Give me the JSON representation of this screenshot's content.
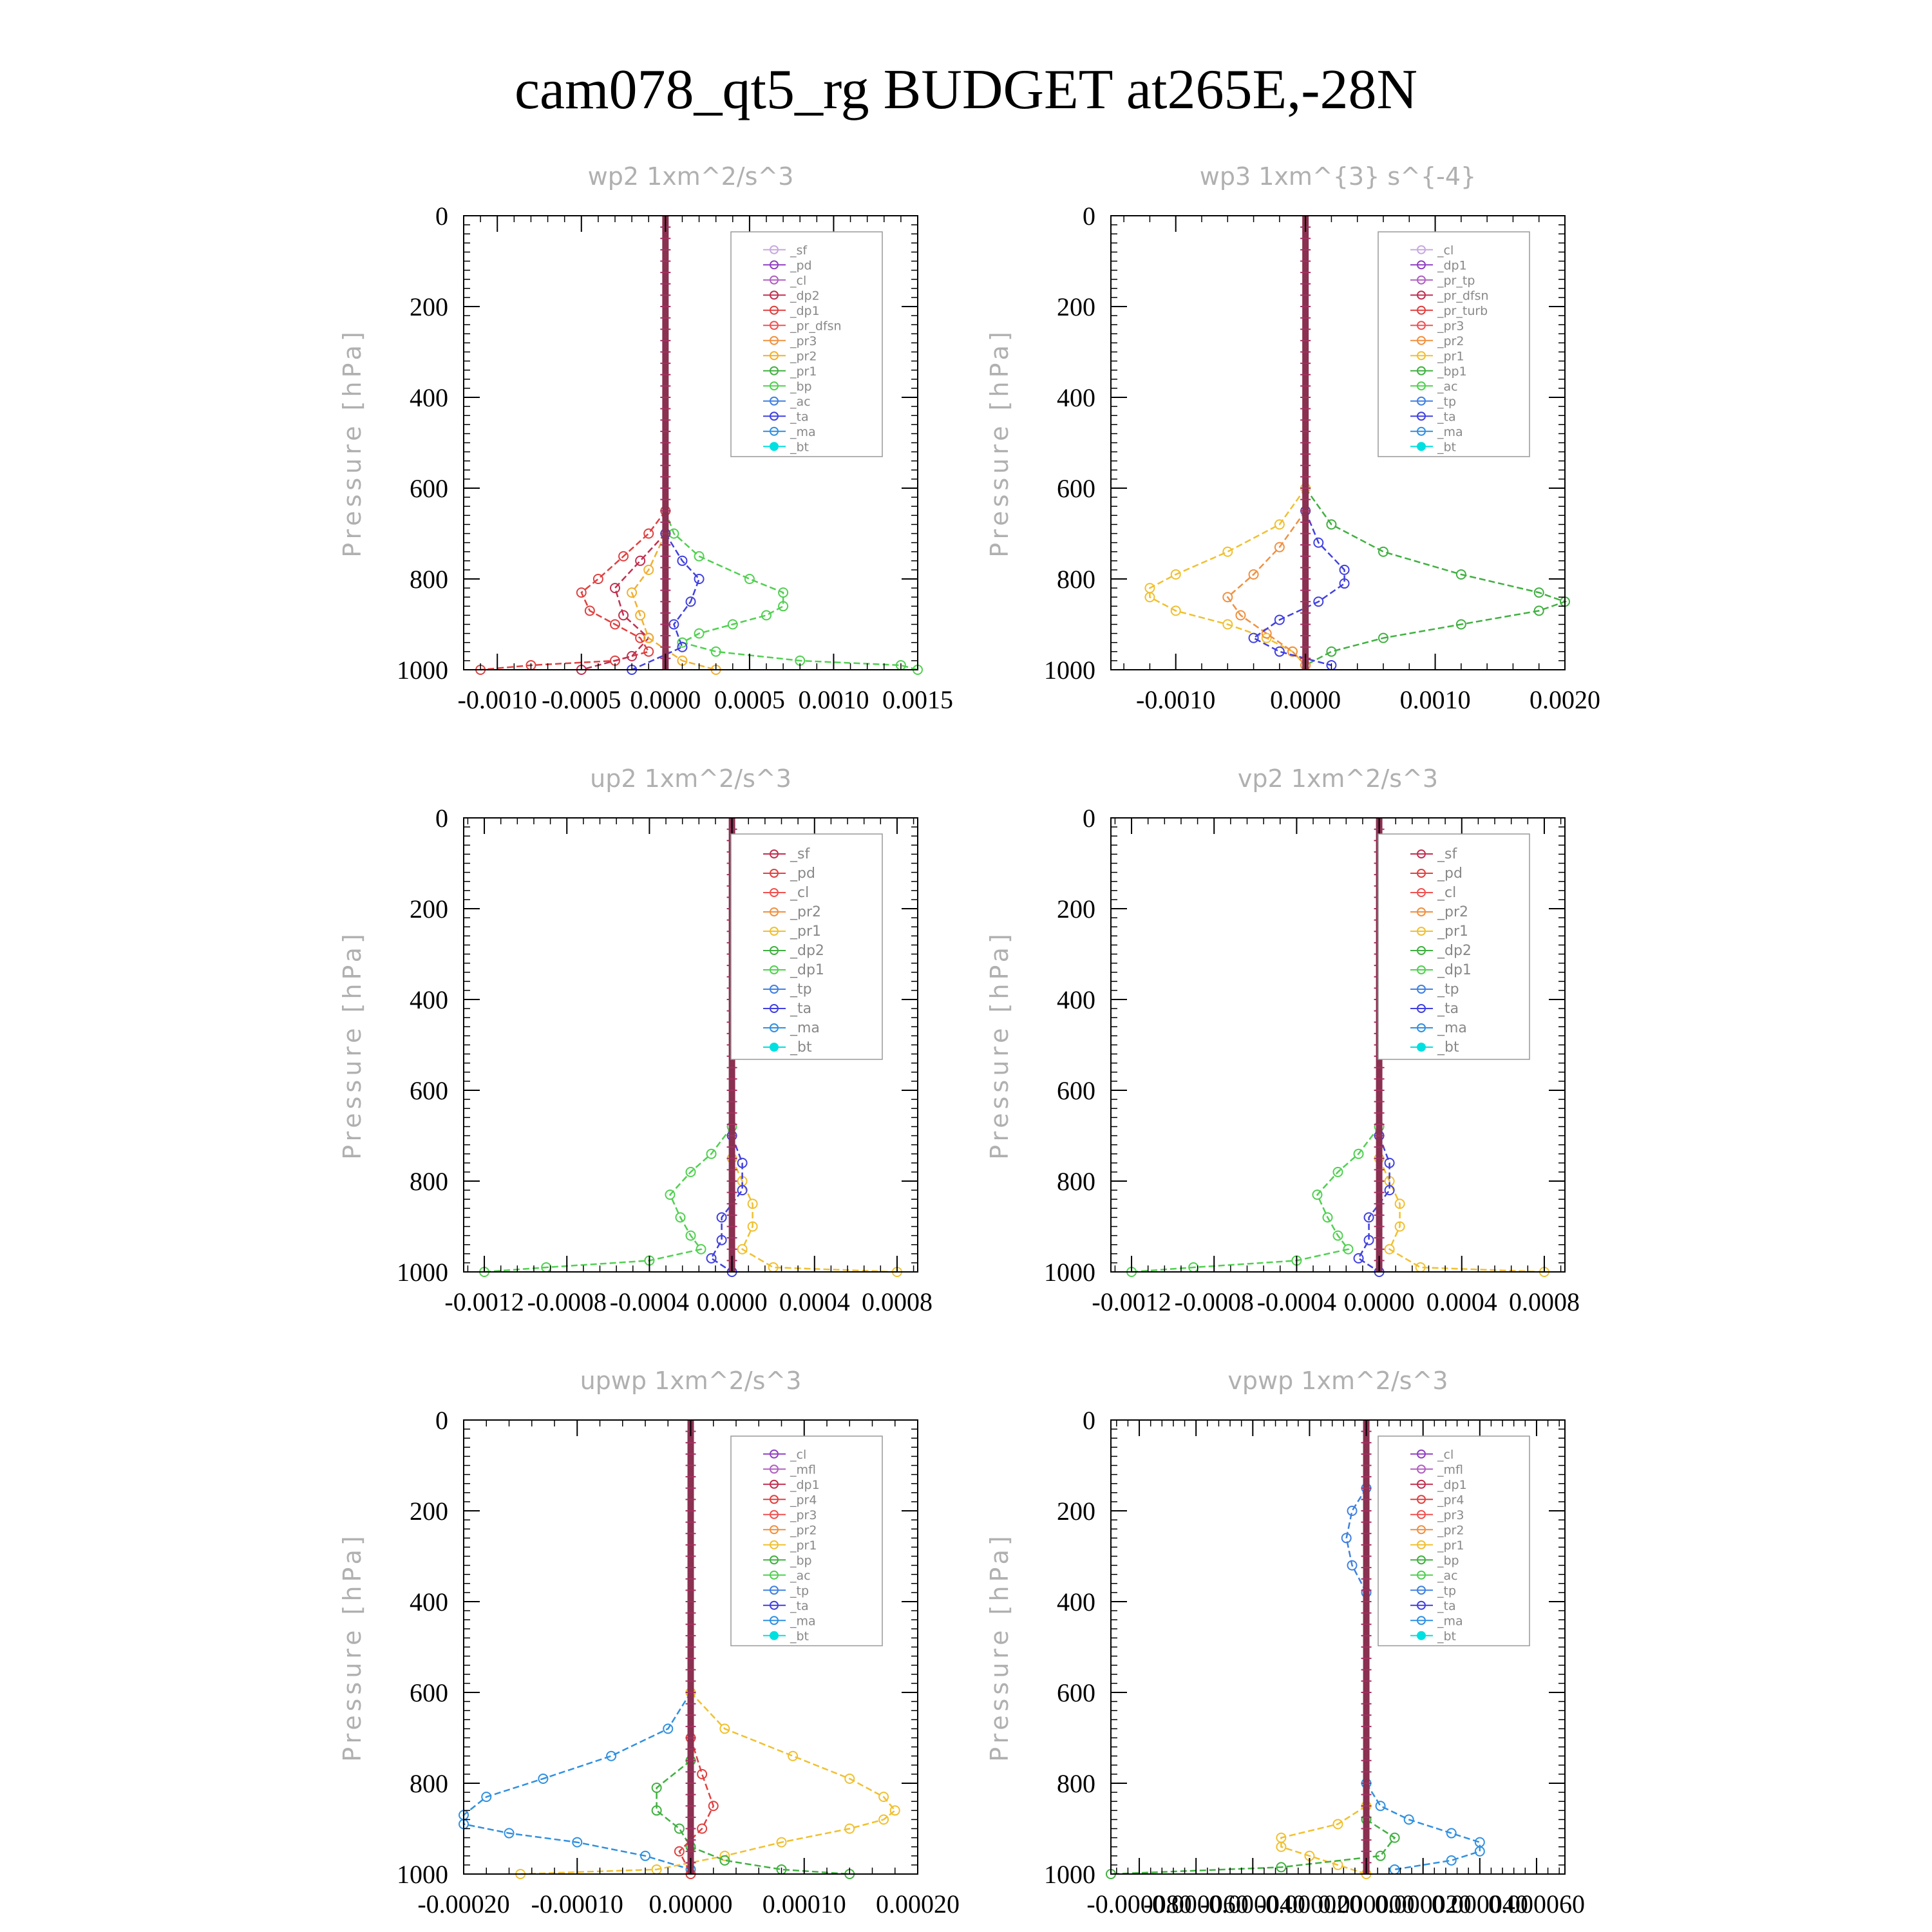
{
  "title": "cam078_qt5_rg  BUDGET at265E,-28N",
  "charts": [
    {
      "id": "wp2",
      "title": "wp2   1xm^2/s^3",
      "ylabel": "Pressure [hPa]",
      "xlim": [
        -0.0012,
        0.0015
      ],
      "ylim": [
        0,
        1000
      ],
      "xticks": [
        "-0.0010",
        "-0.0005",
        "0.0000",
        "0.0005",
        "0.0010",
        "0.0015"
      ],
      "xtick_values": [
        -0.001,
        -0.0005,
        0.0,
        0.0005,
        0.001,
        0.0015
      ],
      "yticks": [
        "0",
        "200",
        "400",
        "600",
        "800",
        "1000"
      ],
      "legend": [
        {
          "name": "_sf",
          "color": "#c8a8e0"
        },
        {
          "name": "_pd",
          "color": "#9040c0"
        },
        {
          "name": "_cl",
          "color": "#b060c0"
        },
        {
          "name": "_dp2",
          "color": "#c03050"
        },
        {
          "name": "_dp1",
          "color": "#e04040"
        },
        {
          "name": "_pr_dfsn",
          "color": "#f05050"
        },
        {
          "name": "_pr3",
          "color": "#f09040"
        },
        {
          "name": "_pr2",
          "color": "#f0b030"
        },
        {
          "name": "_pr1",
          "color": "#40b040"
        },
        {
          "name": "_bp",
          "color": "#50d050"
        },
        {
          "name": "_ac",
          "color": "#4080e0"
        },
        {
          "name": "_ta",
          "color": "#4040e0"
        },
        {
          "name": "_ma",
          "color": "#3090e0"
        },
        {
          "name": "_bt",
          "color": "#00e0e0"
        }
      ],
      "series": [
        {
          "color": "#50d050",
          "p": [
            650,
            700,
            750,
            800,
            830,
            860,
            880,
            900,
            920,
            940,
            960,
            980,
            990,
            1000
          ],
          "v": [
            0,
            5e-05,
            0.0002,
            0.0005,
            0.0007,
            0.0007,
            0.0006,
            0.0004,
            0.0002,
            0.0001,
            0.0003,
            0.0008,
            0.0014,
            0.0015
          ]
        },
        {
          "color": "#e04040",
          "p": [
            650,
            700,
            750,
            800,
            830,
            870,
            900,
            930,
            960,
            980,
            990,
            1000
          ],
          "v": [
            0,
            -0.0001,
            -0.00025,
            -0.0004,
            -0.0005,
            -0.00045,
            -0.0003,
            -0.00015,
            -0.0001,
            -0.0003,
            -0.0008,
            -0.0011
          ]
        },
        {
          "color": "#c03050",
          "p": [
            700,
            760,
            820,
            880,
            930,
            970,
            1000
          ],
          "v": [
            0,
            -0.00015,
            -0.0003,
            -0.00025,
            -0.0001,
            -0.0002,
            -0.0005
          ]
        },
        {
          "color": "#f0b030",
          "p": [
            700,
            780,
            830,
            880,
            930,
            980,
            1000
          ],
          "v": [
            0,
            -0.0001,
            -0.0002,
            -0.00015,
            -0.0001,
            0.0001,
            0.0003
          ]
        },
        {
          "color": "#4040e0",
          "p": [
            700,
            760,
            800,
            850,
            900,
            950,
            1000
          ],
          "v": [
            0,
            0.0001,
            0.0002,
            0.00015,
            5e-05,
            0.0001,
            -0.0002
          ]
        }
      ]
    },
    {
      "id": "wp3",
      "title": "wp3   1xm^{3} s^{-4}",
      "ylabel": "Pressure [hPa]",
      "xlim": [
        -0.0015,
        0.002
      ],
      "ylim": [
        0,
        1000
      ],
      "xticks": [
        "-0.0010",
        "0.0000",
        "0.0010",
        "0.0020"
      ],
      "xtick_values": [
        -0.001,
        0.0,
        0.001,
        0.002
      ],
      "yticks": [
        "0",
        "200",
        "400",
        "600",
        "800",
        "1000"
      ],
      "legend": [
        {
          "name": "_cl",
          "color": "#c8a8e0"
        },
        {
          "name": "_dp1",
          "color": "#9040c0"
        },
        {
          "name": "_pr_tp",
          "color": "#b060c0"
        },
        {
          "name": "_pr_dfsn",
          "color": "#c03050"
        },
        {
          "name": "_pr_turb",
          "color": "#e04040"
        },
        {
          "name": "_pr3",
          "color": "#f05050"
        },
        {
          "name": "_pr2",
          "color": "#f09040"
        },
        {
          "name": "_pr1",
          "color": "#f0c030"
        },
        {
          "name": "_bp1",
          "color": "#40b040"
        },
        {
          "name": "_ac",
          "color": "#50d050"
        },
        {
          "name": "_tp",
          "color": "#4080e0"
        },
        {
          "name": "_ta",
          "color": "#4040e0"
        },
        {
          "name": "_ma",
          "color": "#3090e0"
        },
        {
          "name": "_bt",
          "color": "#00e0e0"
        }
      ],
      "series": [
        {
          "color": "#40b040",
          "p": [
            600,
            680,
            740,
            790,
            830,
            850,
            870,
            900,
            930,
            960,
            990
          ],
          "v": [
            0,
            0.0002,
            0.0006,
            0.0012,
            0.0018,
            0.002,
            0.0018,
            0.0012,
            0.0006,
            0.0002,
            0
          ]
        },
        {
          "color": "#f0c030",
          "p": [
            600,
            680,
            740,
            790,
            820,
            840,
            870,
            900,
            930,
            960,
            990
          ],
          "v": [
            0,
            -0.0002,
            -0.0006,
            -0.001,
            -0.0012,
            -0.0012,
            -0.001,
            -0.0006,
            -0.0003,
            -0.0001,
            0
          ]
        },
        {
          "color": "#f09040",
          "p": [
            650,
            730,
            790,
            840,
            880,
            920,
            960,
            990
          ],
          "v": [
            0,
            -0.0002,
            -0.0004,
            -0.0006,
            -0.0005,
            -0.0003,
            -0.0001,
            0
          ]
        },
        {
          "color": "#4040e0",
          "p": [
            650,
            720,
            780,
            810,
            850,
            890,
            930,
            960,
            990
          ],
          "v": [
            0,
            0.0001,
            0.0003,
            0.0003,
            0.0001,
            -0.0002,
            -0.0004,
            -0.0002,
            0.0002
          ]
        }
      ]
    },
    {
      "id": "up2",
      "title": "up2   1xm^2/s^3",
      "ylabel": "Pressure [hPa]",
      "xlim": [
        -0.0013,
        0.0009
      ],
      "ylim": [
        0,
        1000
      ],
      "xticks": [
        "-0.0012",
        "-0.0008",
        "-0.0004",
        "0.0000",
        "0.0004",
        "0.0008"
      ],
      "xtick_values": [
        -0.0012,
        -0.0008,
        -0.0004,
        0.0,
        0.0004,
        0.0008
      ],
      "yticks": [
        "0",
        "200",
        "400",
        "600",
        "800",
        "1000"
      ],
      "legend": [
        {
          "name": "_sf",
          "color": "#c03050"
        },
        {
          "name": "_pd",
          "color": "#e04040"
        },
        {
          "name": "_cl",
          "color": "#f05050"
        },
        {
          "name": "_pr2",
          "color": "#f09040"
        },
        {
          "name": "_pr1",
          "color": "#f0c030"
        },
        {
          "name": "_dp2",
          "color": "#40b040"
        },
        {
          "name": "_dp1",
          "color": "#50d050"
        },
        {
          "name": "_tp",
          "color": "#4080e0"
        },
        {
          "name": "_ta",
          "color": "#4040e0"
        },
        {
          "name": "_ma",
          "color": "#3090e0"
        },
        {
          "name": "_bt",
          "color": "#00e0e0"
        }
      ],
      "series": [
        {
          "color": "#50d050",
          "p": [
            680,
            740,
            780,
            830,
            880,
            920,
            950,
            975,
            990,
            1000
          ],
          "v": [
            0,
            -0.0001,
            -0.0002,
            -0.0003,
            -0.00025,
            -0.0002,
            -0.00015,
            -0.0004,
            -0.0009,
            -0.0012
          ]
        },
        {
          "color": "#f0c030",
          "p": [
            750,
            800,
            850,
            900,
            950,
            990,
            1000
          ],
          "v": [
            0,
            5e-05,
            0.0001,
            0.0001,
            5e-05,
            0.0002,
            0.0008
          ]
        },
        {
          "color": "#4040e0",
          "p": [
            700,
            760,
            820,
            880,
            930,
            970,
            1000
          ],
          "v": [
            0,
            5e-05,
            5e-05,
            -5e-05,
            -5e-05,
            -0.0001,
            0
          ]
        }
      ]
    },
    {
      "id": "vp2",
      "title": "vp2   1xm^2/s^3",
      "ylabel": "Pressure [hPa]",
      "xlim": [
        -0.0013,
        0.0009
      ],
      "ylim": [
        0,
        1000
      ],
      "xticks": [
        "-0.0012",
        "-0.0008",
        "-0.0004",
        "0.0000",
        "0.0004",
        "0.0008"
      ],
      "xtick_values": [
        -0.0012,
        -0.0008,
        -0.0004,
        0.0,
        0.0004,
        0.0008
      ],
      "yticks": [
        "0",
        "200",
        "400",
        "600",
        "800",
        "1000"
      ],
      "legend": [
        {
          "name": "_sf",
          "color": "#c03050"
        },
        {
          "name": "_pd",
          "color": "#e04040"
        },
        {
          "name": "_cl",
          "color": "#f05050"
        },
        {
          "name": "_pr2",
          "color": "#f09040"
        },
        {
          "name": "_pr1",
          "color": "#f0c030"
        },
        {
          "name": "_dp2",
          "color": "#40b040"
        },
        {
          "name": "_dp1",
          "color": "#50d050"
        },
        {
          "name": "_tp",
          "color": "#4080e0"
        },
        {
          "name": "_ta",
          "color": "#4040e0"
        },
        {
          "name": "_ma",
          "color": "#3090e0"
        },
        {
          "name": "_bt",
          "color": "#00e0e0"
        }
      ],
      "series": [
        {
          "color": "#50d050",
          "p": [
            680,
            740,
            780,
            830,
            880,
            920,
            950,
            975,
            990,
            1000
          ],
          "v": [
            0,
            -0.0001,
            -0.0002,
            -0.0003,
            -0.00025,
            -0.0002,
            -0.00015,
            -0.0004,
            -0.0009,
            -0.0012
          ]
        },
        {
          "color": "#f0c030",
          "p": [
            750,
            800,
            850,
            900,
            950,
            990,
            1000
          ],
          "v": [
            0,
            5e-05,
            0.0001,
            0.0001,
            5e-05,
            0.0002,
            0.0008
          ]
        },
        {
          "color": "#4040e0",
          "p": [
            700,
            760,
            820,
            880,
            930,
            970,
            1000
          ],
          "v": [
            0,
            5e-05,
            5e-05,
            -5e-05,
            -5e-05,
            -0.0001,
            0
          ]
        }
      ]
    },
    {
      "id": "upwp",
      "title": "upwp   1xm^2/s^3",
      "ylabel": "Pressure [hPa]",
      "xlim": [
        -0.0002,
        0.0002
      ],
      "ylim": [
        0,
        1000
      ],
      "xticks": [
        "-0.00020",
        "-0.00010",
        "0.00000",
        "0.00010",
        "0.00020"
      ],
      "xtick_values": [
        -0.0002,
        -0.0001,
        0.0,
        0.0001,
        0.0002
      ],
      "yticks": [
        "0",
        "200",
        "400",
        "600",
        "800",
        "1000"
      ],
      "legend": [
        {
          "name": "_cl",
          "color": "#9040c0"
        },
        {
          "name": "_mfl",
          "color": "#b060c0"
        },
        {
          "name": "_dp1",
          "color": "#c03050"
        },
        {
          "name": "_pr4",
          "color": "#e04040"
        },
        {
          "name": "_pr3",
          "color": "#f05050"
        },
        {
          "name": "_pr2",
          "color": "#f09040"
        },
        {
          "name": "_pr1",
          "color": "#f0c030"
        },
        {
          "name": "_bp",
          "color": "#40b040"
        },
        {
          "name": "_ac",
          "color": "#50d050"
        },
        {
          "name": "_tp",
          "color": "#4080e0"
        },
        {
          "name": "_ta",
          "color": "#4040e0"
        },
        {
          "name": "_ma",
          "color": "#3090e0"
        },
        {
          "name": "_bt",
          "color": "#00e0e0"
        }
      ],
      "series": [
        {
          "color": "#3090e0",
          "p": [
            600,
            680,
            740,
            790,
            830,
            870,
            890,
            910,
            930,
            960,
            990
          ],
          "v": [
            0,
            -2e-05,
            -7e-05,
            -0.00013,
            -0.00018,
            -0.0002,
            -0.0002,
            -0.00016,
            -0.0001,
            -4e-05,
            0
          ]
        },
        {
          "color": "#f0c030",
          "p": [
            600,
            680,
            740,
            790,
            830,
            860,
            880,
            900,
            930,
            960,
            990,
            1000
          ],
          "v": [
            0,
            3e-05,
            9e-05,
            0.00014,
            0.00017,
            0.00018,
            0.00017,
            0.00014,
            8e-05,
            3e-05,
            -3e-05,
            -0.00015
          ]
        },
        {
          "color": "#40b040",
          "p": [
            750,
            810,
            860,
            900,
            940,
            970,
            990,
            1000
          ],
          "v": [
            0,
            -3e-05,
            -3e-05,
            -1e-05,
            0,
            3e-05,
            8e-05,
            0.00014
          ]
        },
        {
          "color": "#e04040",
          "p": [
            700,
            780,
            850,
            900,
            950,
            1000
          ],
          "v": [
            0,
            1e-05,
            2e-05,
            1e-05,
            -1e-05,
            0
          ]
        }
      ]
    },
    {
      "id": "vpwp",
      "title": "vpwp   1xm^2/s^3",
      "ylabel": "Pressure [hPa]",
      "xlim": [
        -9e-05,
        7e-05
      ],
      "ylim": [
        0,
        1000
      ],
      "xticks": [
        "-0.000080",
        "-0.000060",
        "-0.000040",
        "-0.000020",
        "0.000000",
        "0.000020",
        "0.000040",
        "0.000060"
      ],
      "xtick_values": [
        -8e-05,
        -6e-05,
        -4e-05,
        -2e-05,
        0.0,
        2e-05,
        4e-05,
        6e-05
      ],
      "yticks": [
        "0",
        "200",
        "400",
        "600",
        "800",
        "1000"
      ],
      "legend": [
        {
          "name": "_cl",
          "color": "#9040c0"
        },
        {
          "name": "_mfl",
          "color": "#b060c0"
        },
        {
          "name": "_dp1",
          "color": "#c03050"
        },
        {
          "name": "_pr4",
          "color": "#e04040"
        },
        {
          "name": "_pr3",
          "color": "#f05050"
        },
        {
          "name": "_pr2",
          "color": "#f09040"
        },
        {
          "name": "_pr1",
          "color": "#f0c030"
        },
        {
          "name": "_bp",
          "color": "#40b040"
        },
        {
          "name": "_ac",
          "color": "#50d050"
        },
        {
          "name": "_tp",
          "color": "#4080e0"
        },
        {
          "name": "_ta",
          "color": "#4040e0"
        },
        {
          "name": "_ma",
          "color": "#3090e0"
        },
        {
          "name": "_bt",
          "color": "#00e0e0"
        }
      ],
      "series": [
        {
          "color": "#3090e0",
          "p": [
            800,
            850,
            880,
            910,
            930,
            950,
            970,
            990
          ],
          "v": [
            0,
            5e-06,
            1.5e-05,
            3e-05,
            4e-05,
            4e-05,
            3e-05,
            1e-05
          ]
        },
        {
          "color": "#f0c030",
          "p": [
            850,
            890,
            920,
            940,
            960,
            980,
            1000
          ],
          "v": [
            0,
            -1e-05,
            -3e-05,
            -3e-05,
            -2e-05,
            -1e-05,
            0
          ]
        },
        {
          "color": "#40b040",
          "p": [
            880,
            920,
            960,
            985,
            1000
          ],
          "v": [
            0,
            1e-05,
            5e-06,
            -3e-05,
            -9e-05
          ]
        },
        {
          "color": "#4080e0",
          "p": [
            150,
            200,
            260,
            320,
            380
          ],
          "v": [
            0,
            -5e-06,
            -7e-06,
            -5e-06,
            0
          ]
        }
      ]
    }
  ]
}
